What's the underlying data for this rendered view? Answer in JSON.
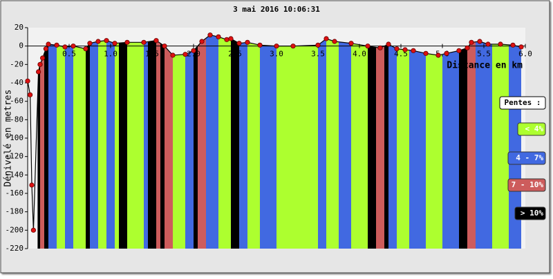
{
  "chart_data": {
    "type": "profile",
    "title": "3 mai 2016 10:06:31",
    "y_label": "Dénivelé en metres",
    "x_label": "Distance en km",
    "x": [
      0.0,
      0.03,
      0.05,
      0.07,
      0.13,
      0.15,
      0.18,
      0.22,
      0.25,
      0.35,
      0.45,
      0.55,
      0.7,
      0.75,
      0.85,
      0.95,
      1.05,
      1.2,
      1.4,
      1.55,
      1.65,
      1.75,
      1.9,
      2.0,
      2.1,
      2.2,
      2.3,
      2.4,
      2.45,
      2.55,
      2.65,
      2.8,
      3.0,
      3.2,
      3.5,
      3.6,
      3.7,
      3.9,
      4.1,
      4.25,
      4.35,
      4.45,
      4.55,
      4.65,
      4.8,
      4.95,
      5.05,
      5.2,
      5.3,
      5.35,
      5.45,
      5.55,
      5.7,
      5.85,
      5.95
    ],
    "values": [
      -38,
      -53,
      -151,
      -200,
      -28,
      -20,
      -13,
      -3,
      2,
      1,
      -1,
      0,
      -3,
      3,
      5,
      6,
      3,
      4,
      4,
      6,
      0,
      -10,
      -9,
      -5,
      5,
      12,
      10,
      7,
      8,
      3,
      4,
      1,
      0,
      0,
      1,
      8,
      5,
      3,
      0,
      -2,
      2,
      -3,
      -4,
      -5,
      -8,
      -10,
      -8,
      -5,
      -2,
      4,
      5,
      2,
      2,
      1,
      -1
    ],
    "line_color": "#000000",
    "marker_color": "#dd1111",
    "bands": {
      "edges": [
        0.12,
        0.15,
        0.2,
        0.25,
        0.35,
        0.45,
        0.55,
        0.7,
        0.75,
        0.85,
        0.95,
        1.05,
        1.1,
        1.2,
        1.4,
        1.45,
        1.55,
        1.6,
        1.65,
        1.75,
        1.9,
        2.0,
        2.05,
        2.15,
        2.3,
        2.45,
        2.55,
        2.65,
        2.8,
        3.0,
        3.3,
        3.5,
        3.6,
        3.75,
        3.9,
        4.1,
        4.2,
        4.3,
        4.35,
        4.45,
        4.6,
        4.8,
        5.0,
        5.2,
        5.3,
        5.4,
        5.6,
        5.8,
        6.0
      ],
      "classes": [
        3,
        2,
        3,
        1,
        0,
        1,
        0,
        3,
        1,
        0,
        1,
        0,
        3,
        0,
        1,
        3,
        2,
        3,
        2,
        0,
        1,
        3,
        2,
        1,
        0,
        3,
        1,
        0,
        1,
        0,
        0,
        1,
        0,
        1,
        0,
        3,
        2,
        3,
        1,
        0,
        1,
        0,
        1,
        3,
        2,
        1,
        0,
        1
      ]
    },
    "legend_title": "Pentes :",
    "slopes": [
      {
        "name": "< 4%",
        "color": "#adff2f"
      },
      {
        "name": "4 - 7%",
        "color": "#4169e1"
      },
      {
        "name": "7 - 10%",
        "color": "#cd5c5c"
      },
      {
        "name": "> 10%",
        "color": "#000000"
      }
    ],
    "xlim": [
      0,
      6
    ],
    "ylim": [
      -220,
      20
    ],
    "xticks": [
      0.5,
      {
        "value": 1,
        "label": "1.0"
      },
      1.5,
      {
        "value": 2,
        "label": "2.0"
      },
      2.5,
      {
        "value": 3,
        "label": "3.0"
      },
      3.5,
      {
        "value": 4,
        "label": "4.0"
      },
      4.5,
      {
        "value": 5,
        "label": "5.0"
      },
      5.5,
      {
        "value": 6,
        "label": "6.0"
      }
    ],
    "yticks": [
      -220,
      -200,
      -180,
      -160,
      -140,
      -120,
      -100,
      -80,
      -60,
      -40,
      -20,
      0,
      20
    ]
  }
}
